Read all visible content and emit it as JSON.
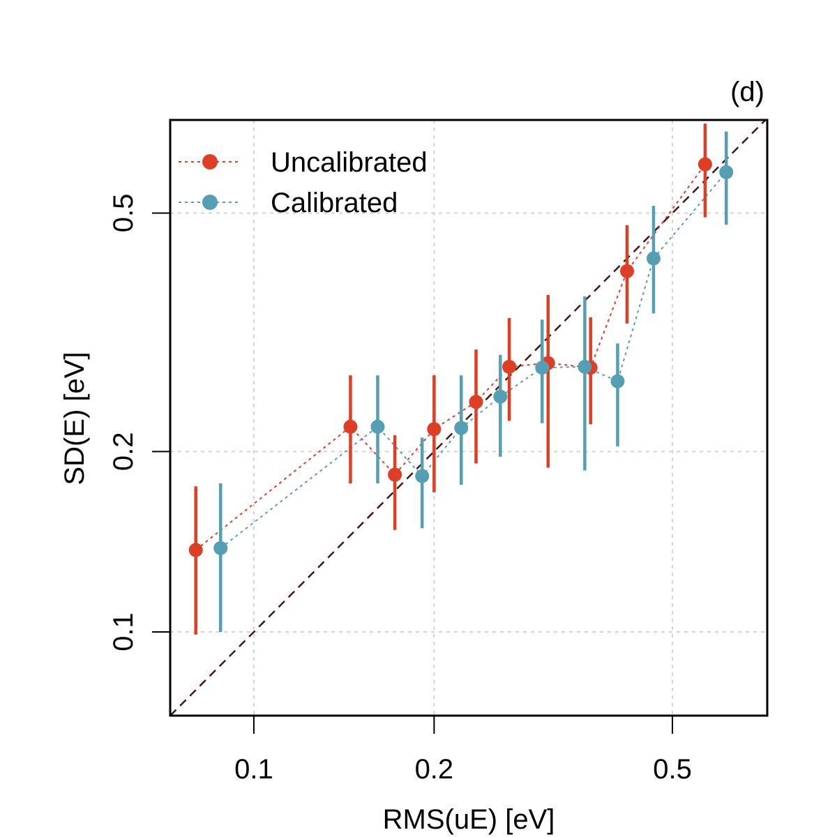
{
  "chart_data": {
    "type": "scatter",
    "panel_label": "(d)",
    "xlabel": "RMS(uE) [eV]",
    "ylabel": "SD(E) [eV]",
    "xscale": "log",
    "yscale": "log",
    "xlim": [
      0.0725,
      0.72
    ],
    "ylim": [
      0.0725,
      0.715
    ],
    "xticks": [
      0.1,
      0.2,
      0.5
    ],
    "xtick_labels": [
      "0.1",
      "0.2",
      "0.5"
    ],
    "yticks": [
      0.1,
      0.2,
      0.5
    ],
    "ytick_labels": [
      "0.1",
      "0.2",
      "0.5"
    ],
    "grid": true,
    "identity_line": true,
    "legend_position": "top-left",
    "series": [
      {
        "name": "Uncalibrated",
        "color": "#dd3e24",
        "points": [
          {
            "x": 0.08,
            "y": 0.137,
            "lo": 0.099,
            "hi": 0.175
          },
          {
            "x": 0.145,
            "y": 0.22,
            "lo": 0.177,
            "hi": 0.268
          },
          {
            "x": 0.172,
            "y": 0.183,
            "lo": 0.148,
            "hi": 0.213
          },
          {
            "x": 0.2,
            "y": 0.218,
            "lo": 0.171,
            "hi": 0.268
          },
          {
            "x": 0.235,
            "y": 0.242,
            "lo": 0.191,
            "hi": 0.296
          },
          {
            "x": 0.267,
            "y": 0.277,
            "lo": 0.225,
            "hi": 0.334
          },
          {
            "x": 0.31,
            "y": 0.281,
            "lo": 0.188,
            "hi": 0.365
          },
          {
            "x": 0.365,
            "y": 0.276,
            "lo": 0.222,
            "hi": 0.335
          },
          {
            "x": 0.42,
            "y": 0.4,
            "lo": 0.327,
            "hi": 0.477
          },
          {
            "x": 0.567,
            "y": 0.603,
            "lo": 0.492,
            "hi": 0.705
          }
        ]
      },
      {
        "name": "Calibrated",
        "color": "#549fb4",
        "points": [
          {
            "x": 0.088,
            "y": 0.138,
            "lo": 0.1,
            "hi": 0.177
          },
          {
            "x": 0.161,
            "y": 0.22,
            "lo": 0.177,
            "hi": 0.268
          },
          {
            "x": 0.191,
            "y": 0.182,
            "lo": 0.149,
            "hi": 0.211
          },
          {
            "x": 0.222,
            "y": 0.219,
            "lo": 0.176,
            "hi": 0.268
          },
          {
            "x": 0.258,
            "y": 0.247,
            "lo": 0.196,
            "hi": 0.29
          },
          {
            "x": 0.303,
            "y": 0.276,
            "lo": 0.223,
            "hi": 0.332
          },
          {
            "x": 0.357,
            "y": 0.277,
            "lo": 0.186,
            "hi": 0.363
          },
          {
            "x": 0.405,
            "y": 0.262,
            "lo": 0.204,
            "hi": 0.303
          },
          {
            "x": 0.465,
            "y": 0.42,
            "lo": 0.34,
            "hi": 0.514
          },
          {
            "x": 0.615,
            "y": 0.585,
            "lo": 0.478,
            "hi": 0.684
          }
        ]
      }
    ]
  }
}
